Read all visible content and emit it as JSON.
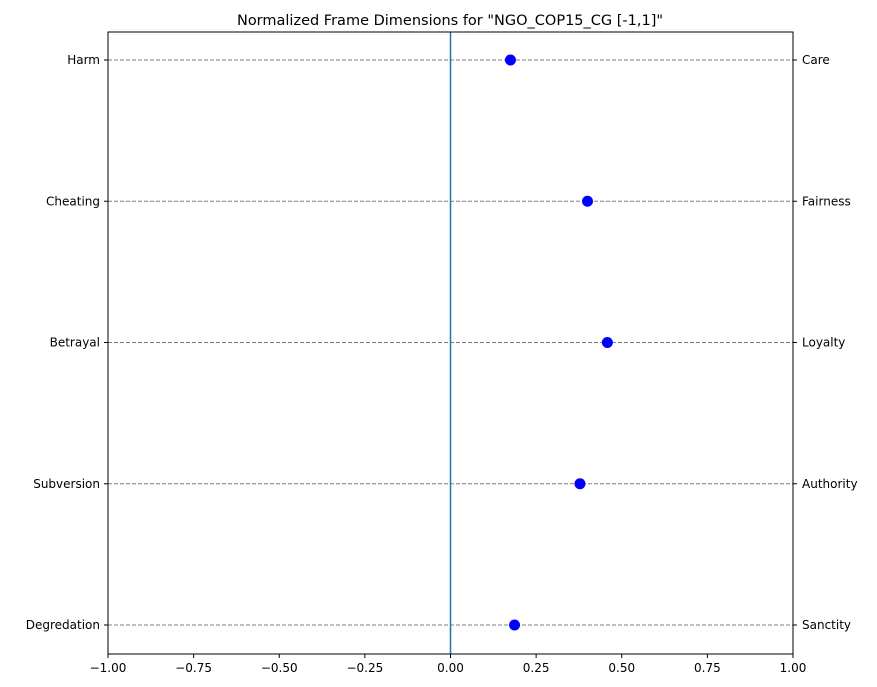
{
  "chart_data": {
    "type": "scatter",
    "title": "Normalized Frame Dimensions for \"NGO_COP15_CG [-1,1]\"",
    "xlabel": "",
    "ylabel": "",
    "xlim": [
      -1.0,
      1.0
    ],
    "x_ticks": [
      -1.0,
      -0.75,
      -0.5,
      -0.25,
      0.0,
      0.25,
      0.5,
      0.75,
      1.0
    ],
    "x_tick_labels": [
      "−1.00",
      "−0.75",
      "−0.50",
      "−0.25",
      "0.00",
      "0.25",
      "0.50",
      "0.75",
      "1.00"
    ],
    "left_labels": [
      "Harm",
      "Cheating",
      "Betrayal",
      "Subversion",
      "Degredation"
    ],
    "right_labels": [
      "Care",
      "Fairness",
      "Loyalty",
      "Authority",
      "Sanctity"
    ],
    "values": [
      0.175,
      0.4,
      0.458,
      0.378,
      0.187
    ],
    "zero_line": 0.0,
    "grid": "horizontal dashed",
    "colors": {
      "point": "#0000ff",
      "zero_line": "#1f77b4",
      "grid": "#808080",
      "axis": "#000000"
    }
  }
}
